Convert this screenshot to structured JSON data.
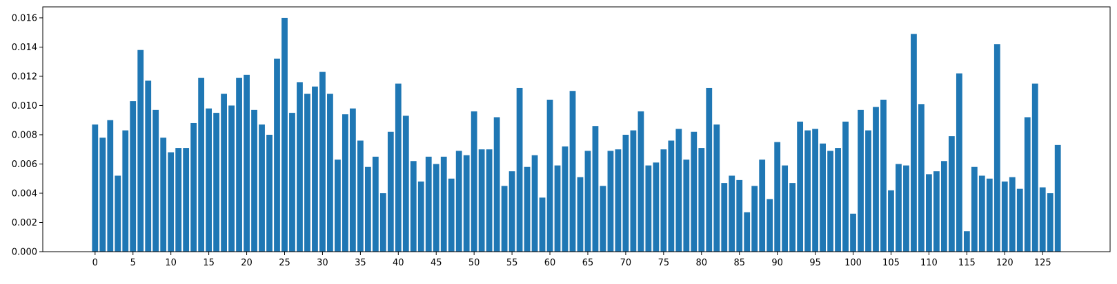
{
  "chart_data": {
    "type": "bar",
    "title": "",
    "xlabel": "",
    "ylabel": "",
    "bar_color": "#1f77b4",
    "grid": false,
    "x": [
      0,
      1,
      2,
      3,
      4,
      5,
      6,
      7,
      8,
      9,
      10,
      11,
      12,
      13,
      14,
      15,
      16,
      17,
      18,
      19,
      20,
      21,
      22,
      23,
      24,
      25,
      26,
      27,
      28,
      29,
      30,
      31,
      32,
      33,
      34,
      35,
      36,
      37,
      38,
      39,
      40,
      41,
      42,
      43,
      44,
      45,
      46,
      47,
      48,
      49,
      50,
      51,
      52,
      53,
      54,
      55,
      56,
      57,
      58,
      59,
      60,
      61,
      62,
      63,
      64,
      65,
      66,
      67,
      68,
      69,
      70,
      71,
      72,
      73,
      74,
      75,
      76,
      77,
      78,
      79,
      80,
      81,
      82,
      83,
      84,
      85,
      86,
      87,
      88,
      89,
      90,
      91,
      92,
      93,
      94,
      95,
      96,
      97,
      98,
      99,
      100,
      101,
      102,
      103,
      104,
      105,
      106,
      107,
      108,
      109,
      110,
      111,
      112,
      113,
      114,
      115,
      116,
      117,
      118,
      119,
      120,
      121,
      122,
      123,
      124,
      125,
      126,
      127
    ],
    "values": [
      0.0087,
      0.0078,
      0.009,
      0.0052,
      0.0083,
      0.0103,
      0.0138,
      0.0117,
      0.0097,
      0.0078,
      0.0068,
      0.0071,
      0.0071,
      0.0088,
      0.0119,
      0.0098,
      0.0095,
      0.0108,
      0.01,
      0.0119,
      0.0121,
      0.0097,
      0.0087,
      0.008,
      0.0132,
      0.016,
      0.0095,
      0.0116,
      0.0108,
      0.0113,
      0.0123,
      0.0108,
      0.0063,
      0.0094,
      0.0098,
      0.0076,
      0.0058,
      0.0065,
      0.004,
      0.0082,
      0.0115,
      0.0093,
      0.0062,
      0.0048,
      0.0065,
      0.006,
      0.0065,
      0.005,
      0.0069,
      0.0066,
      0.0096,
      0.007,
      0.007,
      0.0092,
      0.0045,
      0.0055,
      0.0112,
      0.0058,
      0.0066,
      0.0037,
      0.0104,
      0.0059,
      0.0072,
      0.011,
      0.0051,
      0.0069,
      0.0086,
      0.0045,
      0.0069,
      0.007,
      0.008,
      0.0083,
      0.0096,
      0.0059,
      0.0061,
      0.007,
      0.0076,
      0.0084,
      0.0063,
      0.0082,
      0.0071,
      0.0112,
      0.0087,
      0.0047,
      0.0052,
      0.0049,
      0.0027,
      0.0045,
      0.0063,
      0.0036,
      0.0075,
      0.0059,
      0.0047,
      0.0089,
      0.0083,
      0.0084,
      0.0074,
      0.0069,
      0.0071,
      0.0089,
      0.0026,
      0.0097,
      0.0083,
      0.0099,
      0.0104,
      0.0042,
      0.006,
      0.0059,
      0.0149,
      0.0101,
      0.0053,
      0.0055,
      0.0062,
      0.0079,
      0.0122,
      0.0014,
      0.0058,
      0.0052,
      0.005,
      0.0142,
      0.0048,
      0.0051,
      0.0043,
      0.0092,
      0.0115,
      0.0044,
      0.004,
      0.0073
    ],
    "xticks": [
      0,
      5,
      10,
      15,
      20,
      25,
      30,
      35,
      40,
      45,
      50,
      55,
      60,
      65,
      70,
      75,
      80,
      85,
      90,
      95,
      100,
      105,
      110,
      115,
      120,
      125
    ],
    "xtick_labels": [
      "0",
      "5",
      "10",
      "15",
      "20",
      "25",
      "30",
      "35",
      "40",
      "45",
      "50",
      "55",
      "60",
      "65",
      "70",
      "75",
      "80",
      "85",
      "90",
      "95",
      "100",
      "105",
      "110",
      "115",
      "120",
      "125"
    ],
    "yticks": [
      0,
      0.002,
      0.004,
      0.006,
      0.008,
      0.01,
      0.012,
      0.014,
      0.016
    ],
    "ytick_labels": [
      "0.000",
      "0.002",
      "0.004",
      "0.006",
      "0.008",
      "0.010",
      "0.012",
      "0.014",
      "0.016"
    ],
    "xlim": [
      -6.9,
      133.9
    ],
    "ylim": [
      0,
      0.01675
    ]
  }
}
